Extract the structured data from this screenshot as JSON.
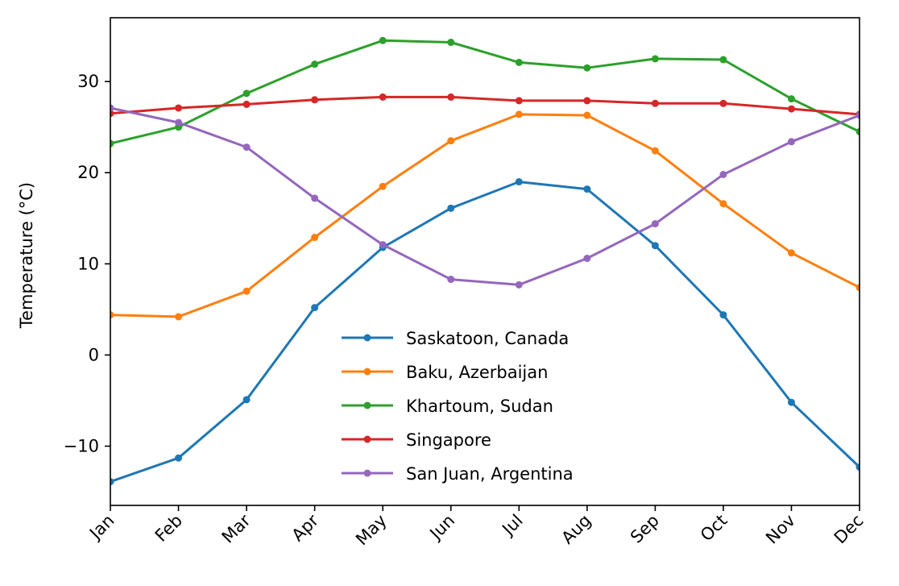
{
  "chart_data": {
    "type": "line",
    "ylabel": "Temperature (°C)",
    "xlabel": "",
    "categories": [
      "Jan",
      "Feb",
      "Mar",
      "Apr",
      "May",
      "Jun",
      "Jul",
      "Aug",
      "Sep",
      "Oct",
      "Nov",
      "Dec"
    ],
    "ylim": [
      -16.5,
      37
    ],
    "yticks": [
      -10,
      0,
      10,
      20,
      30
    ],
    "ytick_labels": [
      "−10",
      "0",
      "10",
      "20",
      "30"
    ],
    "grid": false,
    "legend_position": "lower center",
    "series": [
      {
        "name": "Saskatoon, Canada",
        "color": "#1f77b4",
        "values": [
          -13.9,
          -11.3,
          -4.9,
          5.2,
          11.8,
          16.1,
          19.0,
          18.2,
          12.0,
          4.4,
          -5.2,
          -12.3
        ]
      },
      {
        "name": "Baku, Azerbaijan",
        "color": "#ff7f0e",
        "values": [
          4.4,
          4.2,
          7.0,
          12.9,
          18.5,
          23.5,
          26.4,
          26.3,
          22.4,
          16.6,
          11.2,
          7.4
        ]
      },
      {
        "name": "Khartoum, Sudan",
        "color": "#2ca02c",
        "values": [
          23.2,
          25.0,
          28.7,
          31.9,
          34.5,
          34.3,
          32.1,
          31.5,
          32.5,
          32.4,
          28.1,
          24.5
        ]
      },
      {
        "name": "Singapore",
        "color": "#d62728",
        "values": [
          26.5,
          27.1,
          27.5,
          28.0,
          28.3,
          28.3,
          27.9,
          27.9,
          27.6,
          27.6,
          27.0,
          26.4
        ]
      },
      {
        "name": "San Juan, Argentina",
        "color": "#9467bd",
        "values": [
          27.1,
          25.5,
          22.8,
          17.2,
          12.1,
          8.3,
          7.7,
          10.6,
          14.4,
          19.8,
          23.4,
          26.3
        ]
      }
    ]
  }
}
